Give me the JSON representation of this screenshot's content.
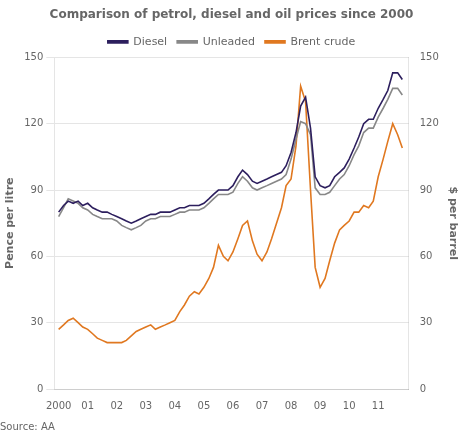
{
  "chart_data": {
    "type": "line",
    "title": "Comparison of petrol, diesel and oil prices since 2000",
    "ylabel": "Pence per litre",
    "y2label": "$ per barrel",
    "annotations": [
      "Source: AA"
    ],
    "grid": "y",
    "legend": "top",
    "xlim": [
      1999.85,
      2012.05
    ],
    "xticks": [
      2000,
      {
        "value": 2001,
        "label": "01"
      },
      {
        "value": 2002,
        "label": "02"
      },
      {
        "value": 2003,
        "label": "03"
      },
      {
        "value": 2004,
        "label": "04"
      },
      {
        "value": 2005,
        "label": "05"
      },
      {
        "value": 2006,
        "label": "06"
      },
      {
        "value": 2007,
        "label": "07"
      },
      {
        "value": 2008,
        "label": "08"
      },
      {
        "value": 2009,
        "label": "09"
      },
      {
        "value": 2010,
        "label": "10"
      },
      {
        "value": 2011,
        "label": "11"
      }
    ],
    "ylim": [
      0,
      150
    ],
    "yticks": [
      0,
      30,
      60,
      90,
      120,
      150
    ],
    "y2lim": [
      0,
      150
    ],
    "y2ticks": [
      0,
      30,
      60,
      90,
      120,
      150
    ],
    "x": [
      2000.0,
      2000.17,
      2000.33,
      2000.5,
      2000.67,
      2000.83,
      2001.0,
      2001.17,
      2001.33,
      2001.5,
      2001.67,
      2001.83,
      2002.0,
      2002.17,
      2002.33,
      2002.5,
      2002.67,
      2002.83,
      2003.0,
      2003.17,
      2003.33,
      2003.5,
      2003.67,
      2003.83,
      2004.0,
      2004.17,
      2004.33,
      2004.5,
      2004.67,
      2004.83,
      2005.0,
      2005.17,
      2005.33,
      2005.5,
      2005.67,
      2005.83,
      2006.0,
      2006.17,
      2006.33,
      2006.5,
      2006.67,
      2006.83,
      2007.0,
      2007.17,
      2007.33,
      2007.5,
      2007.67,
      2007.83,
      2008.0,
      2008.17,
      2008.33,
      2008.5,
      2008.67,
      2008.83,
      2009.0,
      2009.17,
      2009.33,
      2009.5,
      2009.67,
      2009.83,
      2010.0,
      2010.17,
      2010.33,
      2010.5,
      2010.67,
      2010.83,
      2011.0,
      2011.17,
      2011.33,
      2011.5,
      2011.67,
      2011.83
    ],
    "series": [
      {
        "name": "Diesel",
        "color": "#2d1f5e",
        "values": [
          80,
          83,
          85,
          84,
          85,
          83,
          84,
          82,
          81,
          80,
          80,
          79,
          78,
          77,
          76,
          75,
          76,
          77,
          78,
          79,
          79,
          80,
          80,
          80,
          81,
          82,
          82,
          83,
          83,
          83,
          84,
          86,
          88,
          90,
          90,
          90,
          92,
          96,
          99,
          97,
          94,
          93,
          94,
          95,
          96,
          97,
          98,
          101,
          107,
          116,
          128,
          132,
          118,
          96,
          92,
          91,
          92,
          96,
          98,
          100,
          104,
          109,
          114,
          120,
          122,
          122,
          127,
          131,
          135,
          143,
          143,
          140
        ]
      },
      {
        "name": "Unleaded",
        "color": "#888888",
        "values": [
          78,
          82,
          86,
          85,
          84,
          82,
          81,
          79,
          78,
          77,
          77,
          77,
          76,
          74,
          73,
          72,
          73,
          74,
          76,
          77,
          77,
          78,
          78,
          78,
          79,
          80,
          80,
          81,
          81,
          81,
          82,
          84,
          86,
          88,
          88,
          88,
          89,
          93,
          96,
          94,
          91,
          90,
          91,
          92,
          93,
          94,
          95,
          97,
          104,
          113,
          121,
          120,
          115,
          91,
          88,
          88,
          89,
          92,
          95,
          97,
          101,
          106,
          110,
          116,
          118,
          118,
          123,
          127,
          131,
          136,
          136,
          133
        ]
      },
      {
        "name": "Brent crude",
        "color": "#e07820",
        "axis": "y2",
        "values": [
          27,
          29,
          31,
          32,
          30,
          28,
          27,
          25,
          23,
          22,
          21,
          21,
          21,
          21,
          22,
          24,
          26,
          27,
          28,
          29,
          27,
          28,
          29,
          30,
          31,
          35,
          38,
          42,
          44,
          43,
          46,
          50,
          55,
          65,
          60,
          58,
          62,
          68,
          74,
          76,
          67,
          61,
          58,
          62,
          68,
          75,
          82,
          92,
          95,
          110,
          137,
          130,
          90,
          55,
          46,
          50,
          58,
          66,
          72,
          74,
          76,
          80,
          80,
          83,
          82,
          85,
          96,
          104,
          112,
          120,
          115,
          109
        ]
      }
    ]
  }
}
